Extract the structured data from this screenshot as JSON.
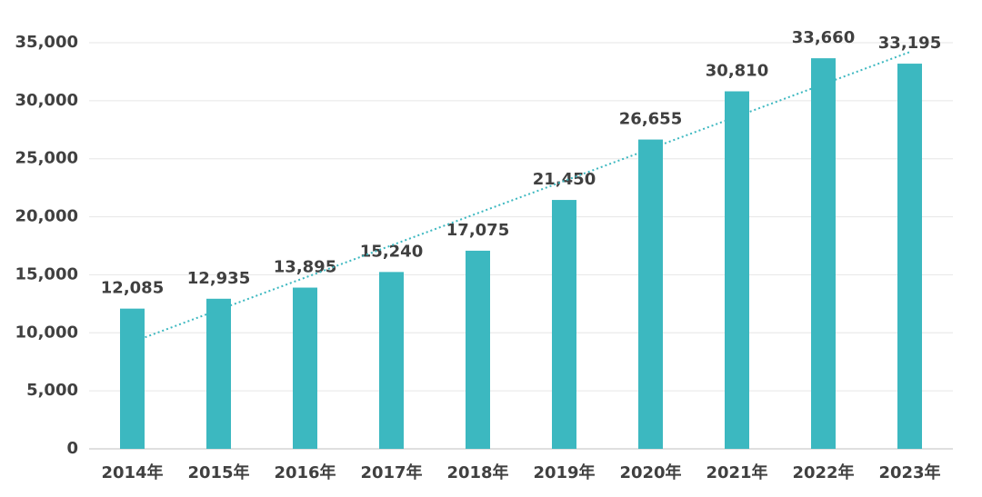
{
  "chart_data": {
    "type": "bar",
    "categories": [
      "2014年",
      "2015年",
      "2016年",
      "2017年",
      "2018年",
      "2019年",
      "2020年",
      "2021年",
      "2022年",
      "2023年"
    ],
    "values": [
      12085,
      12935,
      13895,
      15240,
      17075,
      21450,
      26655,
      30810,
      33660,
      33195
    ],
    "value_labels": [
      "12,085",
      "12,935",
      "13,895",
      "15,240",
      "17,075",
      "21,450",
      "26,655",
      "30,810",
      "33,660",
      "33,195"
    ],
    "color": "#3cb8c0",
    "ylim": [
      0,
      35000
    ],
    "yticks": [
      0,
      {
        "value": 5000,
        "label": "5,000"
      },
      {
        "value": 10000,
        "label": "10,000"
      },
      {
        "value": 15000,
        "label": "15,000"
      },
      {
        "value": 20000,
        "label": "20,000"
      },
      {
        "value": 25000,
        "label": "25,000"
      },
      {
        "value": 30000,
        "label": "30,000"
      },
      {
        "value": 35000,
        "label": "35,000"
      }
    ],
    "grid": true,
    "trendline": "linear"
  }
}
